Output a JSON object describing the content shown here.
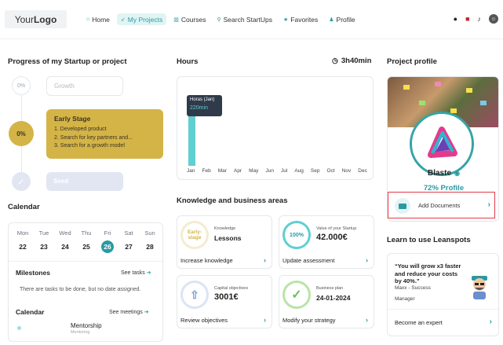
{
  "header": {
    "logo_your": "Your",
    "logo_logo": "Logo",
    "nav": [
      {
        "label": "Home",
        "icon": "home-icon",
        "active": false
      },
      {
        "label": "My Projects",
        "icon": "rocket-icon",
        "active": true
      },
      {
        "label": "Courses",
        "icon": "chart-icon",
        "active": false
      },
      {
        "label": "Search StartUps",
        "icon": "search-icon",
        "active": false
      },
      {
        "label": "Favorites",
        "icon": "star-icon",
        "active": false
      },
      {
        "label": "Profile",
        "icon": "user-icon",
        "active": false
      }
    ]
  },
  "progress": {
    "title": "Progress of my Startup or project",
    "growth": {
      "percent": "0%",
      "label": "Growth"
    },
    "early": {
      "percent": "0%",
      "title": "Early Stage",
      "items": [
        "1. Developed product",
        "2. Search for key partners and...",
        "3. Search for a growth model"
      ]
    },
    "seed": {
      "label": "Seed"
    }
  },
  "calendar": {
    "title": "Calendar",
    "days": [
      {
        "name": "Mon",
        "date": "22"
      },
      {
        "name": "Tue",
        "date": "23"
      },
      {
        "name": "Wed",
        "date": "24"
      },
      {
        "name": "Thu",
        "date": "25"
      },
      {
        "name": "Fri",
        "date": "26"
      },
      {
        "name": "Sat",
        "date": "27"
      },
      {
        "name": "Sun",
        "date": "28"
      }
    ],
    "selected_day": "26",
    "milestones_title": "Milestones",
    "see_tasks": "See tasks",
    "milestones_text": "There are tasks to be done, but no date assigned.",
    "calendar_sub_title": "Calendar",
    "see_meetings": "See meetings",
    "event_title": "Mentorship",
    "event_sub": "Mentoring"
  },
  "hours": {
    "title": "Hours",
    "total": "3h40min",
    "tooltip_title": "Horas (Jan)",
    "tooltip_value": "220min",
    "months": [
      "Jan",
      "Feb",
      "Mar",
      "Apr",
      "May",
      "Jun",
      "Jul",
      "Aug",
      "Sep",
      "Oct",
      "Nov",
      "Dec"
    ]
  },
  "chart_data": {
    "type": "bar",
    "categories": [
      "Jan",
      "Feb",
      "Mar",
      "Apr",
      "May",
      "Jun",
      "Jul",
      "Aug",
      "Sep",
      "Oct",
      "Nov",
      "Dec"
    ],
    "values": [
      220,
      0,
      0,
      0,
      0,
      0,
      0,
      0,
      0,
      0,
      0,
      0
    ],
    "title": "Hours",
    "ylim": [
      0,
      330
    ]
  },
  "knowledge": {
    "title": "Knowledge and business areas",
    "cards": [
      {
        "ring": "Early-stage",
        "label": "Knowledge",
        "value": "Lessons",
        "footer": "Increase knowledge"
      },
      {
        "ring": "100%",
        "label": "Value of your Startup",
        "value": "42.000€",
        "footer": "Update assessment"
      },
      {
        "ring": "",
        "label": "Capital objectives",
        "value": "3001€",
        "footer": "Review objectives"
      },
      {
        "ring": "",
        "label": "Business plan",
        "value": "24-01-2024",
        "footer": "Modify your strategy"
      }
    ]
  },
  "project_profile": {
    "title": "Project profile",
    "name": "Blaste",
    "profile_percent": "72% Profile",
    "add_documents": "Add Documents"
  },
  "learn": {
    "title": "Learn to use Leanspots",
    "quote": "“You will grow x3 faster and reduce your costs by 40%.”",
    "author": "Maxx - Success",
    "role": "Manager",
    "link": "Become an expert"
  },
  "colors": {
    "accent": "#2a9aa0",
    "early_stage": "#d4b447",
    "bar": "#5fcfd2",
    "highlight_border": "#e23b48"
  }
}
